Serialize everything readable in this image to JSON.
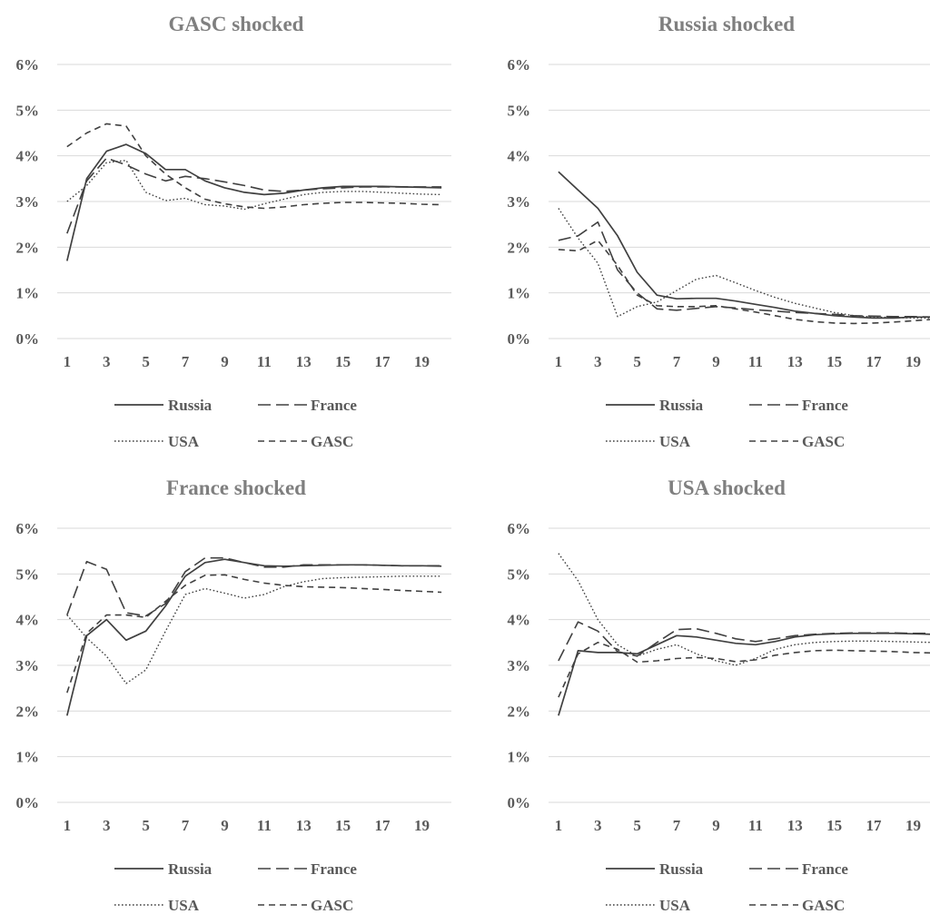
{
  "chart_data": [
    {
      "type": "line",
      "title": "GASC shocked",
      "x": [
        1,
        2,
        3,
        4,
        5,
        6,
        7,
        8,
        9,
        10,
        11,
        12,
        13,
        14,
        15,
        16,
        17,
        18,
        19,
        20
      ],
      "x_tick_labels": [
        "1",
        "3",
        "5",
        "7",
        "9",
        "11",
        "13",
        "15",
        "17",
        "19"
      ],
      "y_tick_labels": [
        "0%",
        "1%",
        "2%",
        "3%",
        "4%",
        "5%",
        "6%"
      ],
      "ylim": [
        0,
        6
      ],
      "y_unit": "%",
      "grid": true,
      "legend_position": "bottom",
      "series": [
        {
          "name": "Russia",
          "values": [
            1.7,
            3.5,
            4.1,
            4.25,
            4.05,
            3.7,
            3.7,
            3.45,
            3.3,
            3.2,
            3.15,
            3.18,
            3.25,
            3.3,
            3.33,
            3.33,
            3.33,
            3.32,
            3.31,
            3.3
          ]
        },
        {
          "name": "France",
          "values": [
            2.3,
            3.45,
            3.95,
            3.8,
            3.6,
            3.45,
            3.55,
            3.5,
            3.43,
            3.35,
            3.25,
            3.22,
            3.25,
            3.28,
            3.3,
            3.32,
            3.32,
            3.32,
            3.32,
            3.32
          ]
        },
        {
          "name": "USA",
          "values": [
            3.0,
            3.35,
            3.85,
            3.9,
            3.2,
            3.02,
            3.07,
            2.93,
            2.9,
            2.83,
            2.95,
            3.05,
            3.15,
            3.2,
            3.22,
            3.22,
            3.2,
            3.18,
            3.16,
            3.15
          ]
        },
        {
          "name": "GASC",
          "values": [
            4.2,
            4.5,
            4.7,
            4.65,
            4.0,
            3.6,
            3.3,
            3.05,
            2.95,
            2.88,
            2.85,
            2.88,
            2.93,
            2.96,
            2.98,
            2.98,
            2.97,
            2.96,
            2.94,
            2.93
          ]
        }
      ]
    },
    {
      "type": "line",
      "title": "Russia shocked",
      "x": [
        1,
        2,
        3,
        4,
        5,
        6,
        7,
        8,
        9,
        10,
        11,
        12,
        13,
        14,
        15,
        16,
        17,
        18,
        19,
        20
      ],
      "x_tick_labels": [
        "1",
        "3",
        "5",
        "7",
        "9",
        "11",
        "13",
        "15",
        "17",
        "19"
      ],
      "y_tick_labels": [
        "0%",
        "1%",
        "2%",
        "3%",
        "4%",
        "5%",
        "6%"
      ],
      "ylim": [
        0,
        6
      ],
      "y_unit": "%",
      "grid": true,
      "legend_position": "bottom",
      "series": [
        {
          "name": "Russia",
          "values": [
            3.65,
            3.25,
            2.85,
            2.25,
            1.45,
            0.95,
            0.87,
            0.88,
            0.88,
            0.82,
            0.75,
            0.68,
            0.6,
            0.55,
            0.5,
            0.47,
            0.45,
            0.45,
            0.47,
            0.47
          ]
        },
        {
          "name": "France",
          "values": [
            2.15,
            2.25,
            2.55,
            1.5,
            1.0,
            0.65,
            0.62,
            0.66,
            0.7,
            0.67,
            0.63,
            0.6,
            0.57,
            0.55,
            0.53,
            0.5,
            0.49,
            0.48,
            0.48,
            0.47
          ]
        },
        {
          "name": "USA",
          "values": [
            2.85,
            2.2,
            1.65,
            0.48,
            0.7,
            0.8,
            1.05,
            1.3,
            1.38,
            1.22,
            1.05,
            0.9,
            0.77,
            0.67,
            0.57,
            0.5,
            0.47,
            0.46,
            0.45,
            0.45
          ]
        },
        {
          "name": "GASC",
          "values": [
            1.95,
            1.92,
            2.15,
            1.6,
            0.95,
            0.72,
            0.7,
            0.7,
            0.72,
            0.65,
            0.58,
            0.5,
            0.42,
            0.37,
            0.34,
            0.33,
            0.34,
            0.36,
            0.39,
            0.42
          ]
        }
      ]
    },
    {
      "type": "line",
      "title": "France shocked",
      "x": [
        1,
        2,
        3,
        4,
        5,
        6,
        7,
        8,
        9,
        10,
        11,
        12,
        13,
        14,
        15,
        16,
        17,
        18,
        19,
        20
      ],
      "x_tick_labels": [
        "1",
        "3",
        "5",
        "7",
        "9",
        "11",
        "13",
        "15",
        "17",
        "19"
      ],
      "y_tick_labels": [
        "0%",
        "1%",
        "2%",
        "3%",
        "4%",
        "5%",
        "6%"
      ],
      "ylim": [
        0,
        6
      ],
      "y_unit": "%",
      "grid": true,
      "legend_position": "bottom",
      "series": [
        {
          "name": "Russia",
          "values": [
            1.9,
            3.65,
            4.0,
            3.55,
            3.75,
            4.3,
            4.95,
            5.25,
            5.32,
            5.25,
            5.18,
            5.17,
            5.18,
            5.19,
            5.2,
            5.2,
            5.19,
            5.18,
            5.18,
            5.17
          ]
        },
        {
          "name": "France",
          "values": [
            4.1,
            5.27,
            5.1,
            4.15,
            4.08,
            4.35,
            5.05,
            5.35,
            5.35,
            5.25,
            5.15,
            5.15,
            5.2,
            5.2,
            5.2,
            5.2,
            5.19,
            5.18,
            5.18,
            5.18
          ]
        },
        {
          "name": "USA",
          "values": [
            4.1,
            3.6,
            3.2,
            2.6,
            2.9,
            3.75,
            4.55,
            4.68,
            4.58,
            4.47,
            4.55,
            4.72,
            4.83,
            4.9,
            4.92,
            4.93,
            4.94,
            4.95,
            4.95,
            4.95
          ]
        },
        {
          "name": "GASC",
          "values": [
            2.4,
            3.7,
            4.1,
            4.1,
            4.05,
            4.4,
            4.75,
            4.97,
            4.98,
            4.88,
            4.8,
            4.75,
            4.72,
            4.71,
            4.7,
            4.68,
            4.66,
            4.64,
            4.62,
            4.6
          ]
        }
      ]
    },
    {
      "type": "line",
      "title": "USA shocked",
      "x": [
        1,
        2,
        3,
        4,
        5,
        6,
        7,
        8,
        9,
        10,
        11,
        12,
        13,
        14,
        15,
        16,
        17,
        18,
        19,
        20
      ],
      "x_tick_labels": [
        "1",
        "3",
        "5",
        "7",
        "9",
        "11",
        "13",
        "15",
        "17",
        "19"
      ],
      "y_tick_labels": [
        "0%",
        "1%",
        "2%",
        "3%",
        "4%",
        "5%",
        "6%"
      ],
      "ylim": [
        0,
        6
      ],
      "y_unit": "%",
      "grid": true,
      "legend_position": "bottom",
      "series": [
        {
          "name": "Russia",
          "values": [
            1.9,
            3.32,
            3.28,
            3.28,
            3.25,
            3.45,
            3.65,
            3.62,
            3.55,
            3.48,
            3.45,
            3.52,
            3.62,
            3.67,
            3.69,
            3.7,
            3.7,
            3.7,
            3.69,
            3.68
          ]
        },
        {
          "name": "France",
          "values": [
            3.1,
            3.95,
            3.75,
            3.3,
            3.2,
            3.5,
            3.78,
            3.8,
            3.7,
            3.58,
            3.52,
            3.58,
            3.65,
            3.68,
            3.7,
            3.71,
            3.71,
            3.71,
            3.7,
            3.7
          ]
        },
        {
          "name": "USA",
          "values": [
            5.45,
            4.85,
            4.0,
            3.45,
            3.2,
            3.35,
            3.45,
            3.25,
            3.1,
            3.0,
            3.15,
            3.35,
            3.45,
            3.5,
            3.52,
            3.53,
            3.53,
            3.52,
            3.51,
            3.5
          ]
        },
        {
          "name": "GASC",
          "values": [
            2.3,
            3.25,
            3.5,
            3.35,
            3.07,
            3.1,
            3.15,
            3.17,
            3.15,
            3.08,
            3.12,
            3.22,
            3.28,
            3.32,
            3.33,
            3.32,
            3.31,
            3.3,
            3.28,
            3.27
          ]
        }
      ]
    }
  ],
  "styles": {
    "series_colors": {
      "Russia": "#404040",
      "France": "#404040",
      "USA": "#404040",
      "GASC": "#404040"
    },
    "series_dash": {
      "Russia": "solid",
      "France": "long-dash",
      "USA": "dotted",
      "GASC": "dashed"
    },
    "title_color": "#7f7f7f",
    "tick_color": "#595959",
    "grid_color": "#d9d9d9"
  }
}
